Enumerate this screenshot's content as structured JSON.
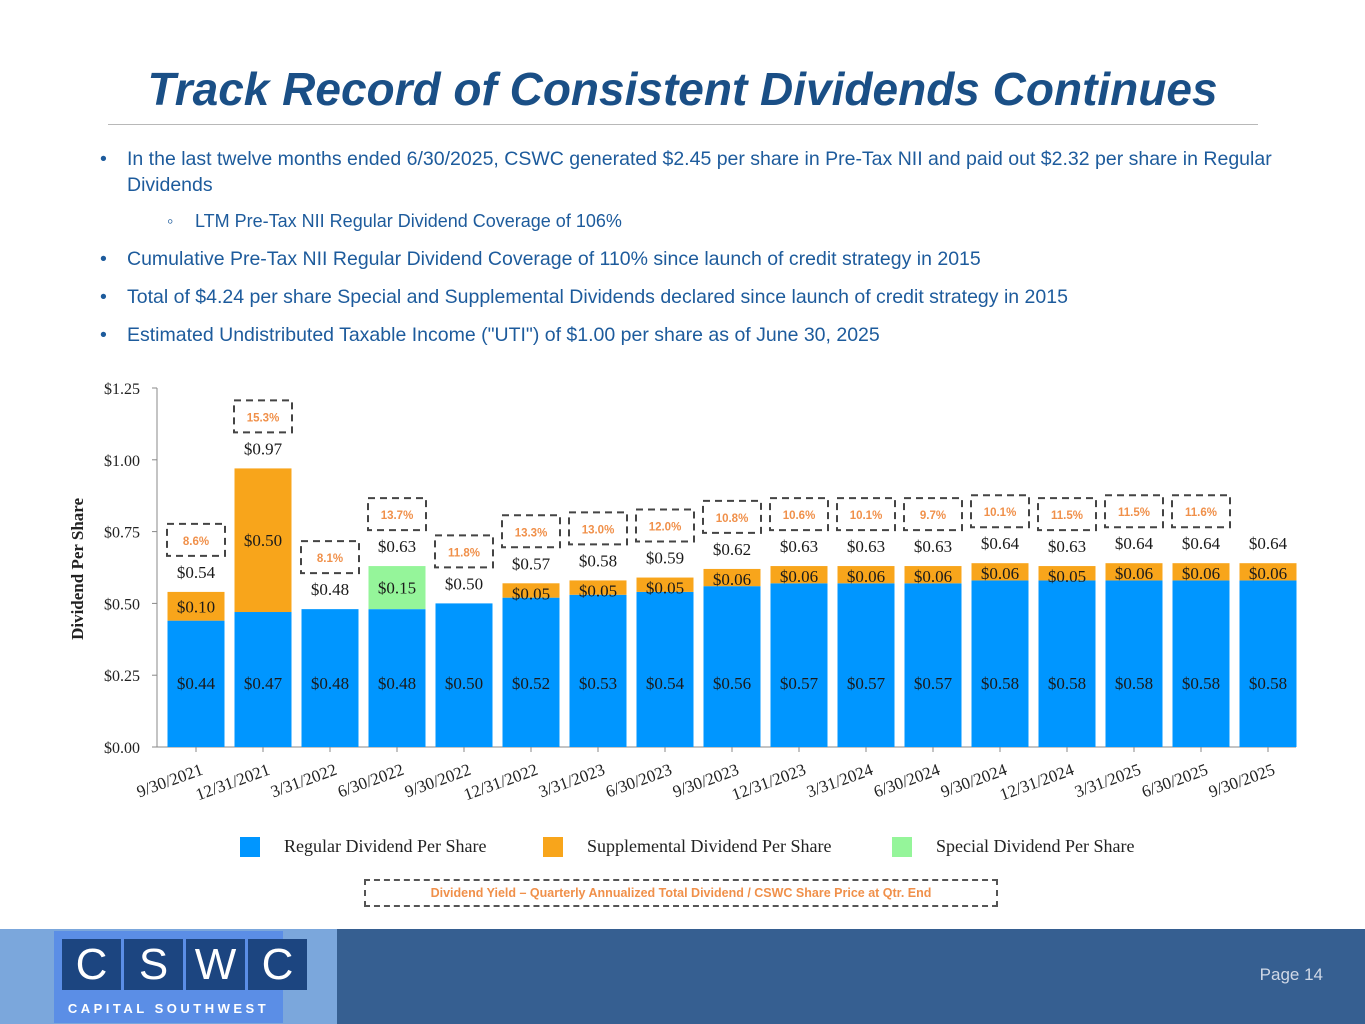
{
  "title": "Track Record of Consistent Dividends Continues",
  "bullets": [
    "In the last twelve months ended 6/30/2025, CSWC generated $2.45 per share in Pre-Tax NII and paid out $2.32 per share in Regular Dividends",
    "LTM Pre-Tax NII Regular Dividend Coverage of 106%",
    "Cumulative Pre-Tax NII Regular Dividend Coverage of 110% since launch of credit strategy in 2015",
    "Total of $4.24 per share Special and Supplemental Dividends declared since launch of credit strategy in 2015",
    "Estimated Undistributed Taxable Income (\"UTI\") of $1.00 per share as of June 30, 2025"
  ],
  "chart_data": {
    "type": "bar",
    "stacked": true,
    "ylabel": "Dividend Per Share",
    "ylim": [
      0,
      1.25
    ],
    "yticks": [
      "$0.00",
      "$0.25",
      "$0.50",
      "$0.75",
      "$1.00",
      "$1.25"
    ],
    "categories": [
      "9/30/2021",
      "12/31/2021",
      "3/31/2022",
      "6/30/2022",
      "9/30/2022",
      "12/31/2022",
      "3/31/2023",
      "6/30/2023",
      "9/30/2023",
      "12/31/2023",
      "3/31/2024",
      "6/30/2024",
      "9/30/2024",
      "12/31/2024",
      "3/31/2025",
      "6/30/2025",
      "9/30/2025"
    ],
    "series": [
      {
        "name": "Regular Dividend Per Share",
        "color": "#0096ff",
        "values": [
          0.44,
          0.47,
          0.48,
          0.48,
          0.5,
          0.52,
          0.53,
          0.54,
          0.56,
          0.57,
          0.57,
          0.57,
          0.58,
          0.58,
          0.58,
          0.58,
          0.58
        ]
      },
      {
        "name": "Supplemental Dividend Per Share",
        "color": "#f8a51b",
        "values": [
          0.1,
          0.5,
          0,
          0,
          0,
          0.05,
          0.05,
          0.05,
          0.06,
          0.06,
          0.06,
          0.06,
          0.06,
          0.05,
          0.06,
          0.06,
          0.06
        ]
      },
      {
        "name": "Special Dividend Per Share",
        "color": "#95f59a",
        "values": [
          0,
          0,
          0,
          0.15,
          0,
          0,
          0,
          0,
          0,
          0,
          0,
          0,
          0,
          0,
          0,
          0,
          0
        ]
      }
    ],
    "totals": [
      0.54,
      0.97,
      0.48,
      0.63,
      0.5,
      0.57,
      0.58,
      0.59,
      0.62,
      0.63,
      0.63,
      0.63,
      0.64,
      0.63,
      0.64,
      0.64,
      0.64
    ],
    "yields": [
      "8.6%",
      "15.3%",
      "8.1%",
      "13.7%",
      "11.8%",
      "13.3%",
      "13.0%",
      "12.0%",
      "10.8%",
      "10.6%",
      "10.1%",
      "9.7%",
      "10.1%",
      "11.5%",
      "11.5%",
      "11.6%",
      null
    ],
    "yield_note": "Dividend Yield – Quarterly Annualized Total Dividend / CSWC Share Price at Qtr. End"
  },
  "logo": {
    "letters": [
      "C",
      "S",
      "W",
      "C"
    ],
    "subtitle": "CAPITAL SOUTHWEST"
  },
  "page": "Page 14"
}
